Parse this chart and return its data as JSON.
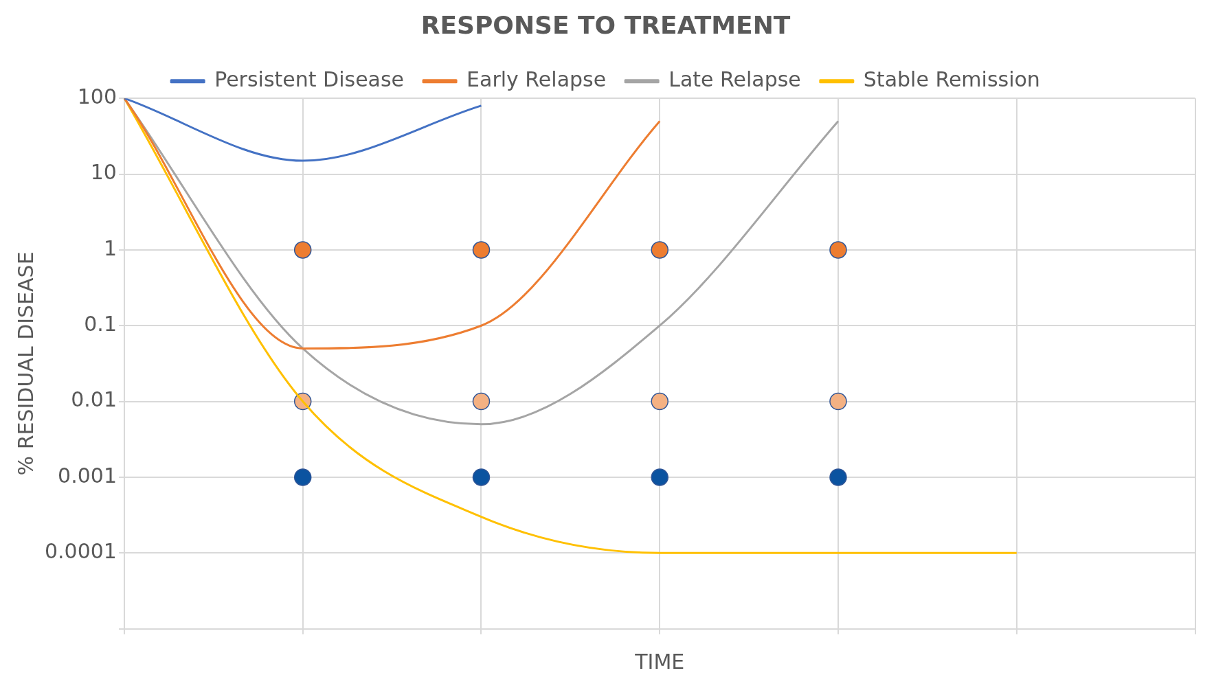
{
  "chart_data": {
    "type": "line",
    "title": "RESPONSE TO TREATMENT",
    "xlabel": "TIME",
    "ylabel": "% RESIDUAL DISEASE",
    "categories": [
      null,
      null,
      null,
      null,
      null,
      null,
      null
    ],
    "series": [
      {
        "name": "Persistent Disease",
        "color": "#4472c4",
        "values": [
          100,
          15,
          80,
          null,
          null,
          null,
          null
        ]
      },
      {
        "name": "Early Relapse",
        "color": "#ed7d31",
        "values": [
          100,
          0.05,
          0.1,
          50,
          null,
          null,
          null
        ]
      },
      {
        "name": "Late Relapse",
        "color": "#a5a5a5",
        "values": [
          100,
          0.05,
          0.005,
          0.1,
          50,
          null,
          null
        ]
      },
      {
        "name": "Stable Remission",
        "color": "#ffc000",
        "values": [
          100,
          0.01,
          0.0003,
          0.0001,
          0.0001,
          0.0001,
          null
        ]
      },
      {
        "type": "scatter",
        "marker": "circle",
        "color": "#ed7d31",
        "values": [
          null,
          1,
          1,
          1,
          1,
          null,
          null
        ]
      },
      {
        "type": "scatter",
        "marker": "circle",
        "color": "#f4b183",
        "values": [
          null,
          0.01,
          0.01,
          0.01,
          0.01,
          null,
          null
        ]
      },
      {
        "type": "scatter",
        "marker": "circle",
        "color": "#0b53a0",
        "values": [
          null,
          0.001,
          0.001,
          0.001,
          0.001,
          null,
          null
        ]
      }
    ],
    "log": true,
    "ylim": [
      1e-05,
      100
    ],
    "yticks": [
      {
        "value": 1e-05,
        "label": null
      },
      0.0001,
      0.001,
      0.01,
      0.1,
      1,
      10,
      100
    ],
    "grid": true,
    "legend": "top",
    "line_style": "solid"
  }
}
